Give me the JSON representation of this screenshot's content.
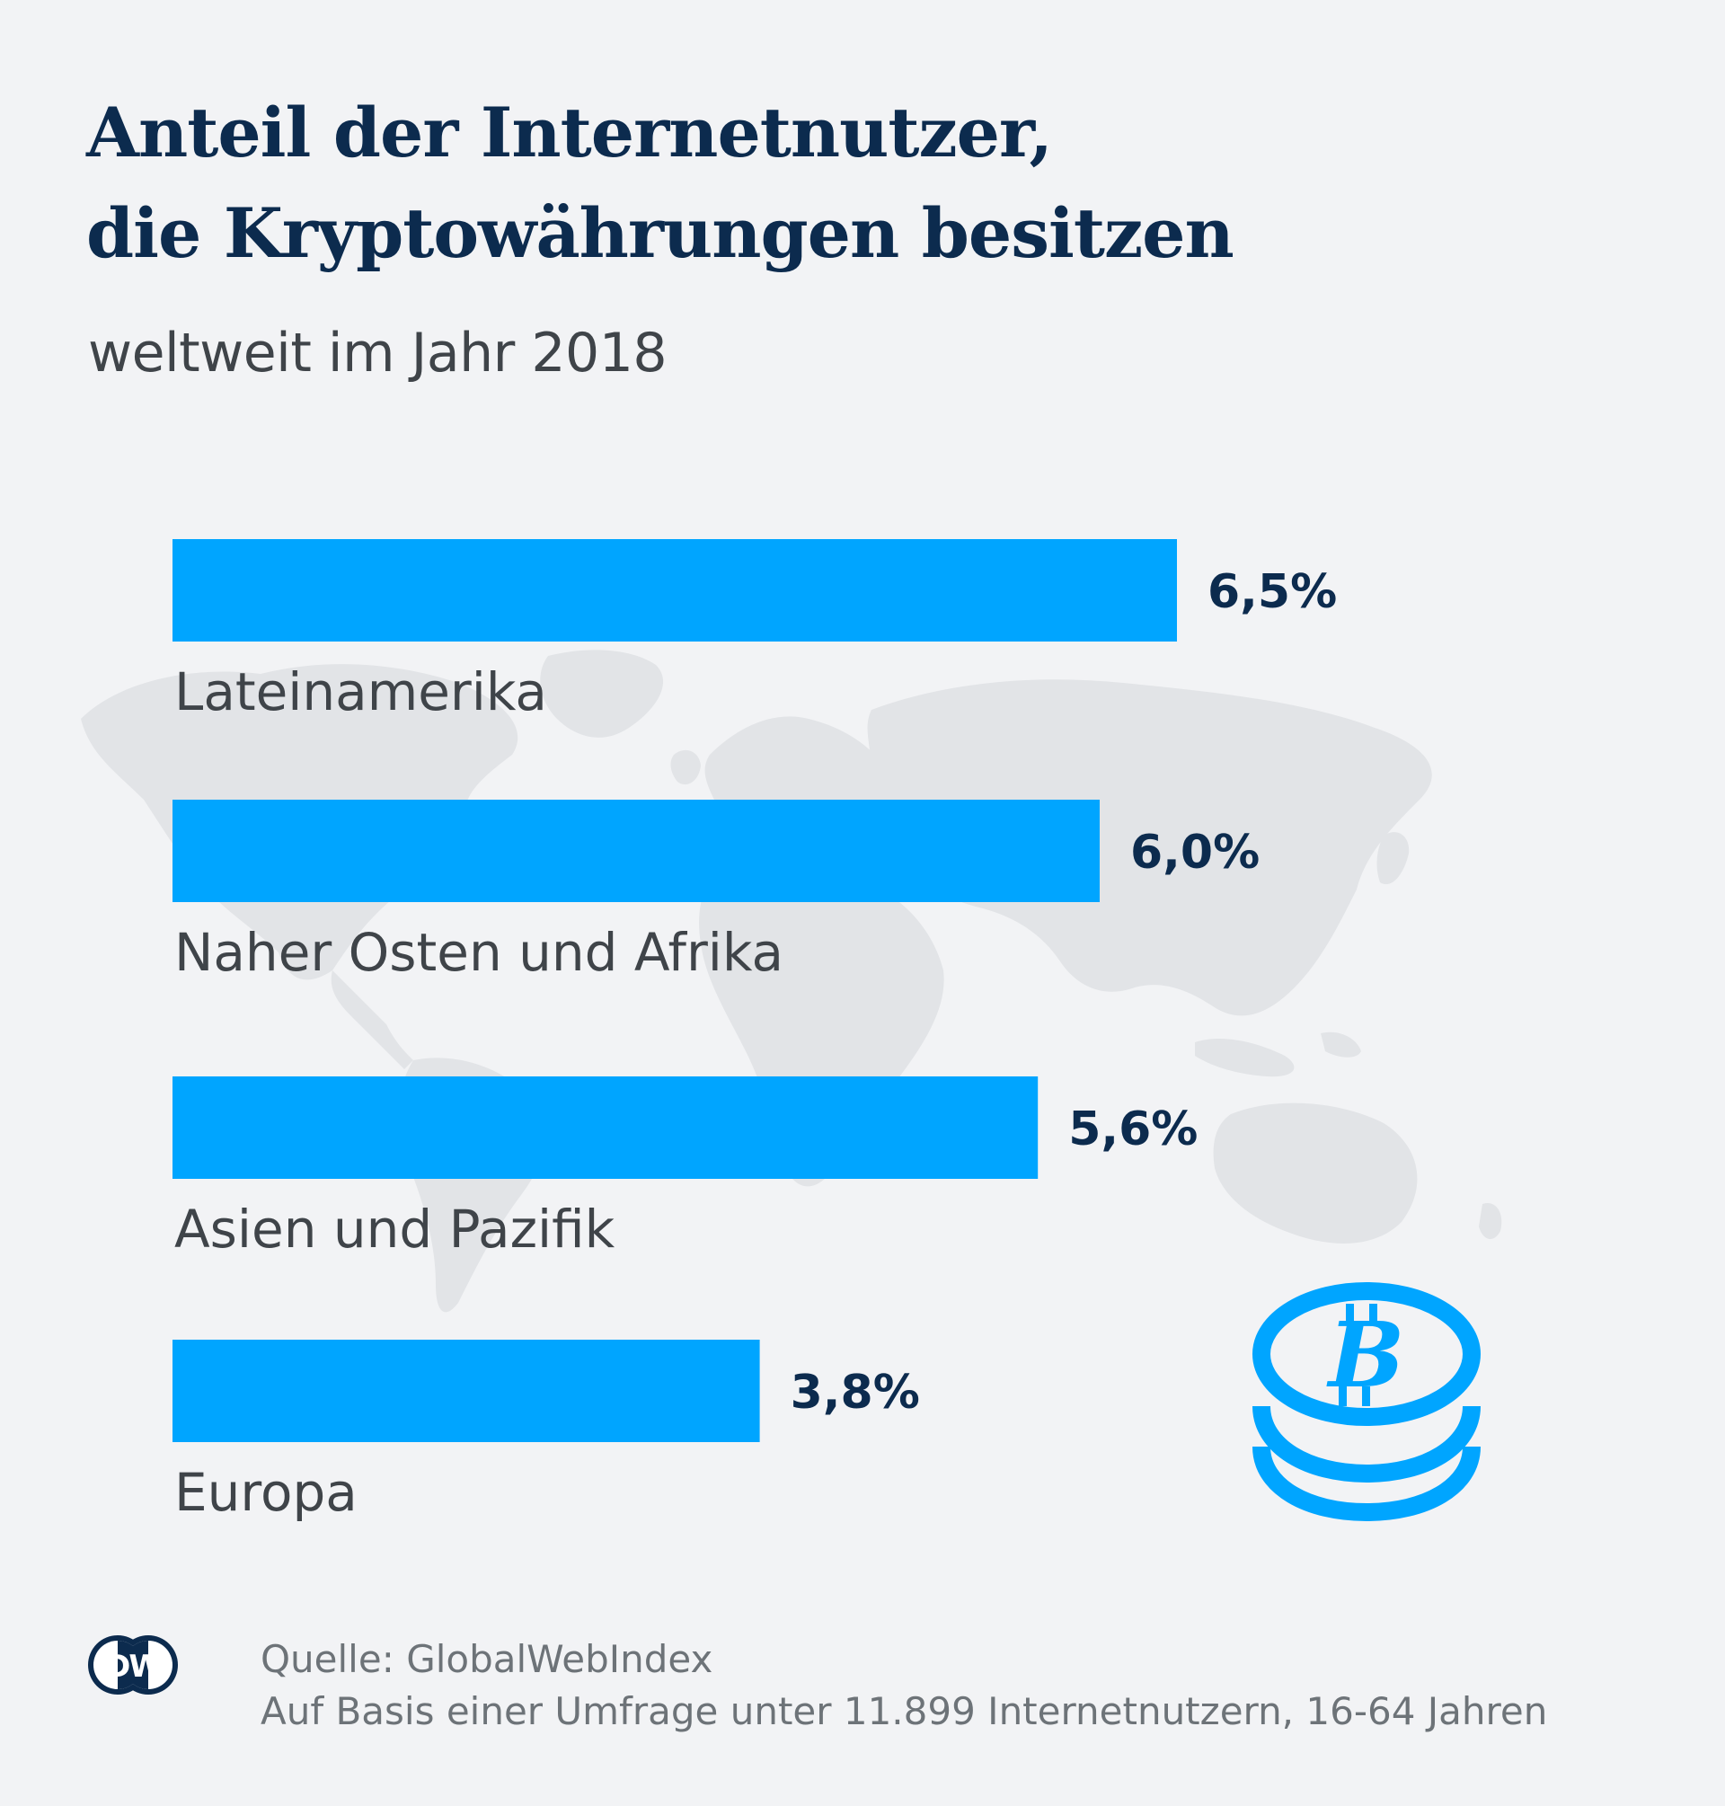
{
  "colors": {
    "background": "#f2f3f5",
    "bar": "#00a5ff",
    "title": "#0c2b4e",
    "text": "#3f4449",
    "source_text": "#6d7378",
    "map": "#e2e4e7"
  },
  "header": {
    "title_line1": "Anteil der Internetnutzer,",
    "title_line2": "die Kryptowährungen besitzen",
    "subtitle": "weltweit im Jahr 2018"
  },
  "chart_data": {
    "type": "bar",
    "orientation": "horizontal",
    "title": "Anteil der Internetnutzer, die Kryptowährungen besitzen",
    "subtitle": "weltweit im Jahr 2018",
    "categories": [
      "Lateinamerika",
      "Naher Osten und Afrika",
      "Asien und Pazifik",
      "Europa"
    ],
    "values": [
      6.5,
      6.0,
      5.6,
      3.8
    ],
    "value_labels": [
      "6,5%",
      "6,0%",
      "5,6%",
      "3,8%"
    ],
    "unit": "%",
    "xlabel": "",
    "ylabel": "",
    "xlim": [
      0,
      6.5
    ],
    "grid": false,
    "legend": "none"
  },
  "icons": {
    "coin": "bitcoin-coins-icon",
    "logo": "dw-logo",
    "background": "world-map"
  },
  "logo": {
    "text": "DW"
  },
  "footer": {
    "source": "Quelle: GlobalWebIndex",
    "note": "Auf Basis einer Umfrage unter 11.899 Internetnutzern, 16-64 Jahren"
  }
}
